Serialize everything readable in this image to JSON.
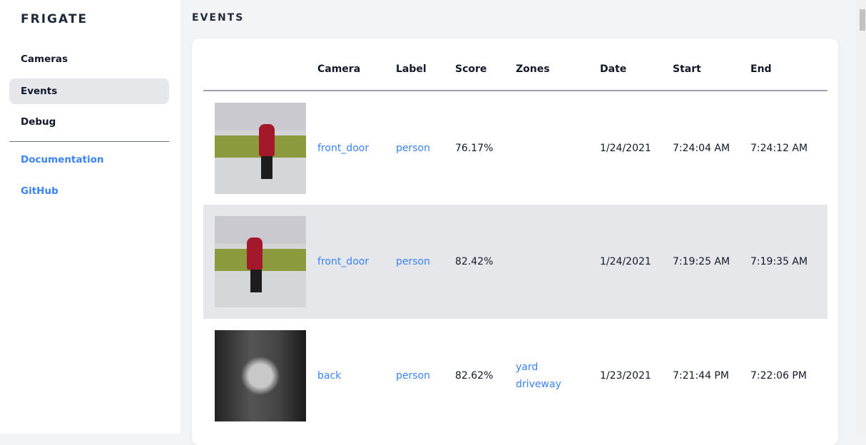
{
  "sidebar": {
    "brand": "FRIGATE",
    "items": [
      {
        "label": "Cameras"
      },
      {
        "label": "Events"
      },
      {
        "label": "Debug"
      }
    ],
    "links": [
      {
        "label": "Documentation"
      },
      {
        "label": "GitHub"
      }
    ]
  },
  "page": {
    "title": "EVENTS"
  },
  "table": {
    "headers": [
      "Camera",
      "Label",
      "Score",
      "Zones",
      "Date",
      "Start",
      "End"
    ],
    "rows": [
      {
        "camera": "front_door",
        "label": "person",
        "score": "76.17%",
        "zones": [],
        "date": "1/24/2021",
        "start": "7:24:04 AM",
        "end": "7:24:12 AM"
      },
      {
        "camera": "front_door",
        "label": "person",
        "score": "82.42%",
        "zones": [],
        "date": "1/24/2021",
        "start": "7:19:25 AM",
        "end": "7:19:35 AM"
      },
      {
        "camera": "back",
        "label": "person",
        "score": "82.62%",
        "zones": [
          "yard",
          "driveway"
        ],
        "date": "1/23/2021",
        "start": "7:21:44 PM",
        "end": "7:22:06 PM"
      }
    ]
  },
  "colors": {
    "accent": "#3b82f6",
    "active_bg": "#e5e7eb"
  }
}
